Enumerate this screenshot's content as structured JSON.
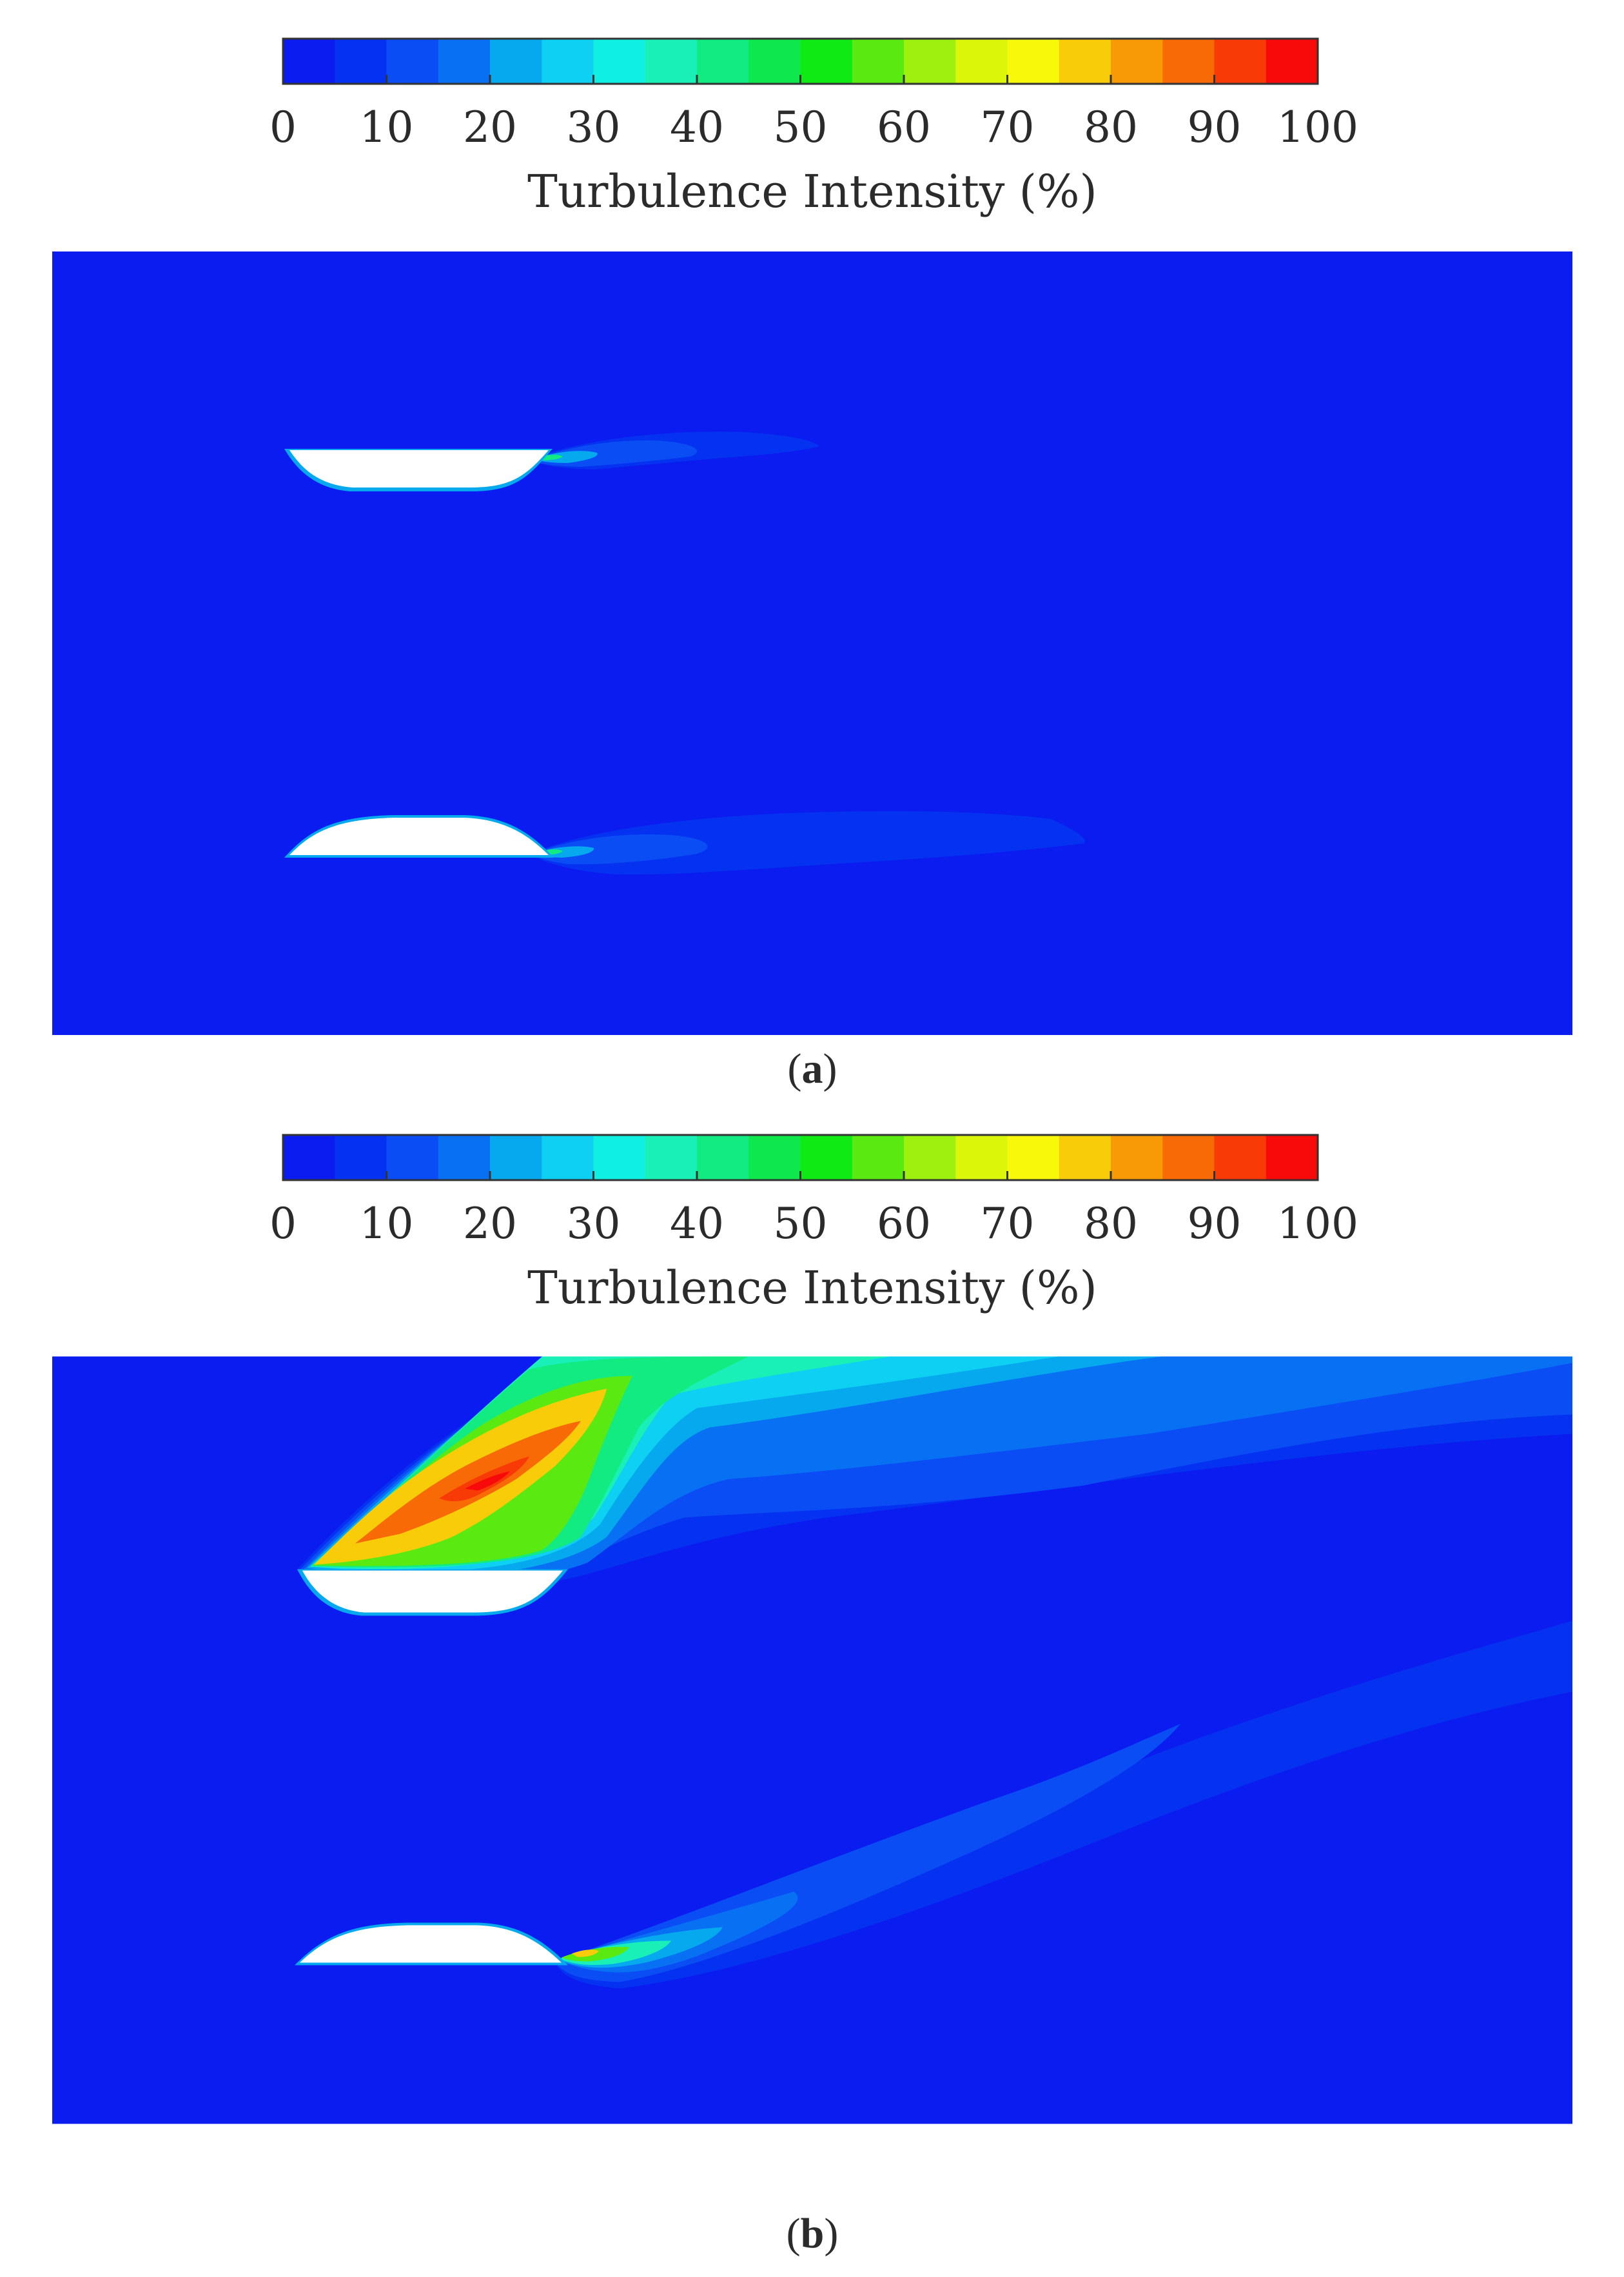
{
  "colorbar": {
    "title": "Turbulence Intensity (%)",
    "ticks": [
      "0",
      "10",
      "20",
      "30",
      "40",
      "50",
      "60",
      "70",
      "80",
      "90",
      "100"
    ],
    "range": [
      0,
      100
    ],
    "levels": 20,
    "colors": [
      "#0a1cf0",
      "#0532f0",
      "#0a4df5",
      "#0870f2",
      "#06a8ee",
      "#0ed0f2",
      "#10f0e2",
      "#18f0b8",
      "#12ea82",
      "#0ee84c",
      "#10ea14",
      "#5aea12",
      "#9ef00e",
      "#dcf60a",
      "#f8f80a",
      "#f8cc08",
      "#f89a06",
      "#f86a06",
      "#f83a06",
      "#f80a0a"
    ]
  },
  "panels": [
    {
      "caption_letter": "a",
      "caption_open": "(",
      "caption_close": ")"
    },
    {
      "caption_letter": "b",
      "caption_open": "(",
      "caption_close": ")"
    }
  ],
  "chart_data": [
    {
      "type": "heatmap",
      "colorbar_label": "Turbulence Intensity (%)",
      "range": [
        0,
        100
      ],
      "tick_labels": [
        "0",
        "10",
        "20",
        "30",
        "40",
        "50",
        "60",
        "70",
        "80",
        "90",
        "100"
      ],
      "panel": "a"
    },
    {
      "type": "heatmap",
      "colorbar_label": "Turbulence Intensity (%)",
      "range": [
        0,
        100
      ],
      "tick_labels": [
        "0",
        "10",
        "20",
        "30",
        "40",
        "50",
        "60",
        "70",
        "80",
        "90",
        "100"
      ],
      "panel": "b"
    }
  ]
}
